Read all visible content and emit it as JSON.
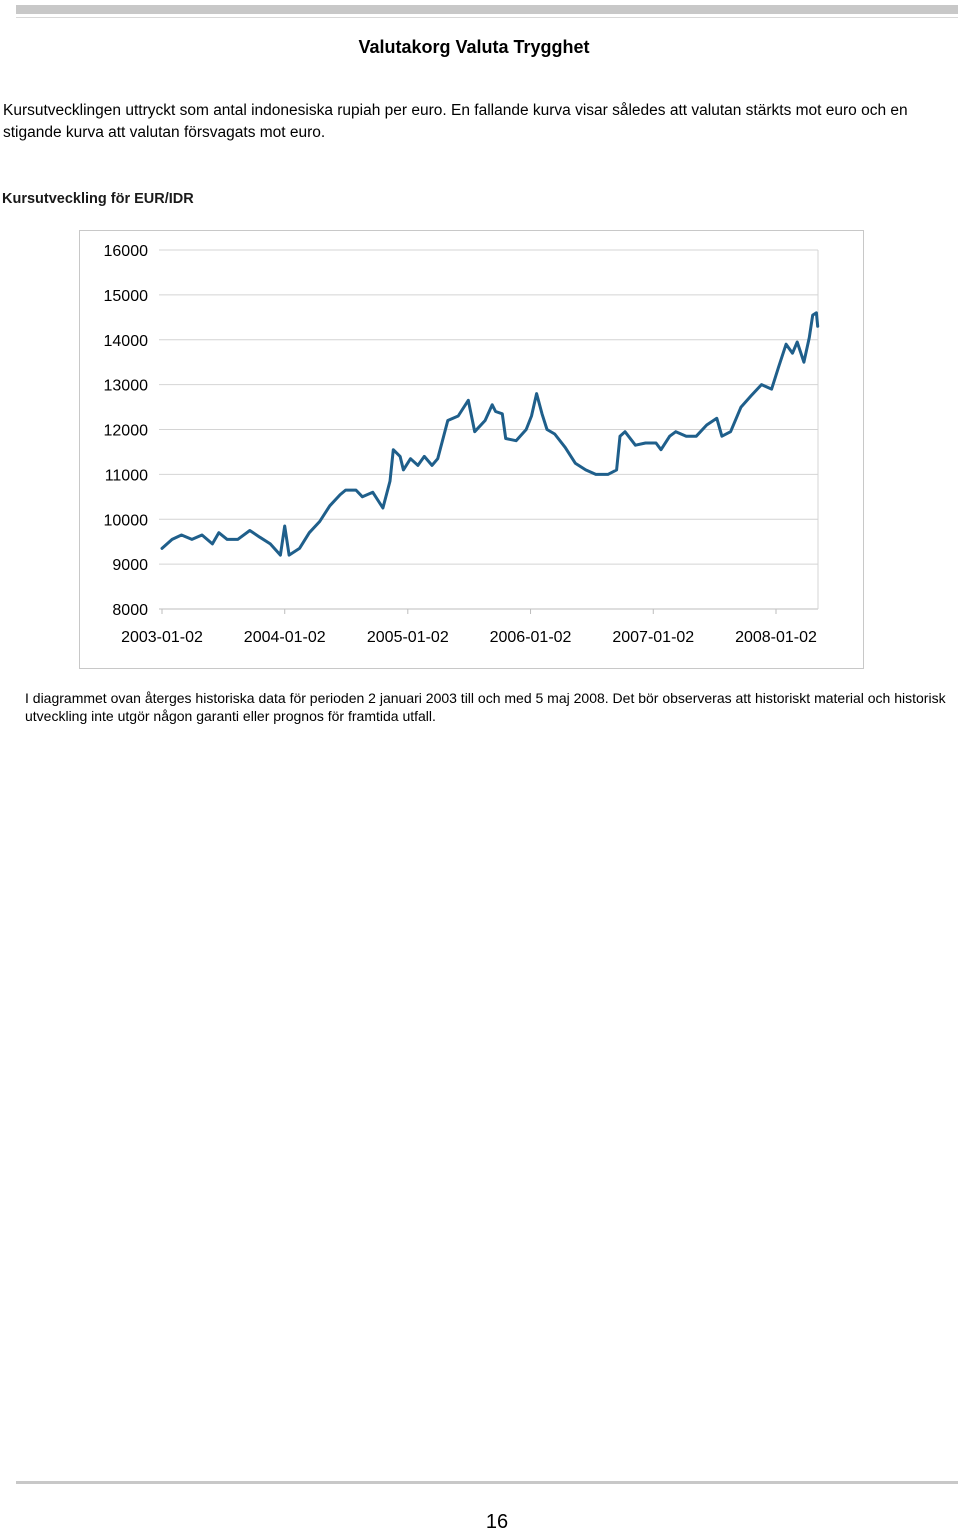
{
  "header": {
    "title": "Valutakorg Valuta Trygghet"
  },
  "intro_text": "Kursutvecklingen uttryckt som antal indonesiska rupiah per euro. En fallande kurva visar således att valutan stärkts mot euro och en stigande kurva att valutan försvagats mot euro.",
  "chart_heading": "Kursutveckling för EUR/IDR",
  "chart_data": {
    "type": "line",
    "title": "Kursutveckling för EUR/IDR",
    "xlabel": "",
    "ylabel": "",
    "ylim": [
      8000,
      16000
    ],
    "yticks": [
      "16000",
      "15000",
      "14000",
      "13000",
      "12000",
      "11000",
      "10000",
      "9000",
      "8000"
    ],
    "xticks": [
      "2003-01-02",
      "2004-01-02",
      "2005-01-02",
      "2006-01-02",
      "2007-01-02",
      "2008-01-02"
    ],
    "xrange": [
      "2003-01-02",
      "2008-05-05"
    ],
    "grid": "horizontal",
    "series": [
      {
        "color": "#1f5f8b",
        "points": [
          [
            "2003-01-02",
            9350
          ],
          [
            "2003-02-01",
            9550
          ],
          [
            "2003-03-01",
            9650
          ],
          [
            "2003-04-01",
            9550
          ],
          [
            "2003-05-01",
            9650
          ],
          [
            "2003-06-01",
            9450
          ],
          [
            "2003-06-20",
            9700
          ],
          [
            "2003-07-15",
            9550
          ],
          [
            "2003-08-15",
            9550
          ],
          [
            "2003-09-20",
            9750
          ],
          [
            "2003-10-20",
            9600
          ],
          [
            "2003-11-20",
            9450
          ],
          [
            "2003-12-20",
            9200
          ],
          [
            "2004-01-02",
            9850
          ],
          [
            "2004-01-15",
            9200
          ],
          [
            "2004-02-15",
            9350
          ],
          [
            "2004-03-15",
            9700
          ],
          [
            "2004-04-15",
            9950
          ],
          [
            "2004-05-15",
            10300
          ],
          [
            "2004-06-15",
            10550
          ],
          [
            "2004-07-01",
            10650
          ],
          [
            "2004-08-01",
            10650
          ],
          [
            "2004-08-20",
            10500
          ],
          [
            "2004-09-20",
            10600
          ],
          [
            "2004-10-20",
            10250
          ],
          [
            "2004-11-10",
            10850
          ],
          [
            "2004-11-20",
            11550
          ],
          [
            "2004-12-10",
            11400
          ],
          [
            "2004-12-20",
            11100
          ],
          [
            "2005-01-10",
            11350
          ],
          [
            "2005-02-01",
            11200
          ],
          [
            "2005-02-20",
            11400
          ],
          [
            "2005-03-15",
            11200
          ],
          [
            "2005-04-01",
            11350
          ],
          [
            "2005-05-01",
            12200
          ],
          [
            "2005-06-01",
            12300
          ],
          [
            "2005-07-01",
            12650
          ],
          [
            "2005-07-20",
            11950
          ],
          [
            "2005-08-20",
            12200
          ],
          [
            "2005-09-10",
            12550
          ],
          [
            "2005-09-20",
            12400
          ],
          [
            "2005-10-10",
            12350
          ],
          [
            "2005-10-20",
            11800
          ],
          [
            "2005-11-20",
            11750
          ],
          [
            "2005-12-20",
            12000
          ],
          [
            "2006-01-05",
            12300
          ],
          [
            "2006-01-20",
            12800
          ],
          [
            "2006-02-05",
            12350
          ],
          [
            "2006-02-20",
            12000
          ],
          [
            "2006-03-15",
            11900
          ],
          [
            "2006-04-15",
            11600
          ],
          [
            "2006-05-15",
            11250
          ],
          [
            "2006-06-15",
            11100
          ],
          [
            "2006-07-15",
            11000
          ],
          [
            "2006-08-20",
            11000
          ],
          [
            "2006-09-15",
            11100
          ],
          [
            "2006-09-25",
            11850
          ],
          [
            "2006-10-10",
            11950
          ],
          [
            "2006-11-10",
            11650
          ],
          [
            "2006-12-10",
            11700
          ],
          [
            "2007-01-10",
            11700
          ],
          [
            "2007-01-25",
            11550
          ],
          [
            "2007-02-20",
            11850
          ],
          [
            "2007-03-10",
            11950
          ],
          [
            "2007-04-10",
            11850
          ],
          [
            "2007-05-10",
            11850
          ],
          [
            "2007-06-10",
            12100
          ],
          [
            "2007-07-10",
            12250
          ],
          [
            "2007-07-25",
            11850
          ],
          [
            "2007-08-20",
            11950
          ],
          [
            "2007-09-20",
            12500
          ],
          [
            "2007-10-20",
            12750
          ],
          [
            "2007-11-20",
            13000
          ],
          [
            "2007-12-20",
            12900
          ],
          [
            "2008-01-10",
            13400
          ],
          [
            "2008-02-01",
            13900
          ],
          [
            "2008-02-20",
            13700
          ],
          [
            "2008-03-05",
            13950
          ],
          [
            "2008-03-25",
            13500
          ],
          [
            "2008-04-10",
            14050
          ],
          [
            "2008-04-20",
            14550
          ],
          [
            "2008-05-01",
            14600
          ],
          [
            "2008-05-05",
            14300
          ]
        ]
      }
    ]
  },
  "caption": "I diagrammet ovan återges historiska data för perioden 2 januari 2003 till och med 5 maj 2008. Det bör observeras att historiskt material och historisk utveckling inte utgör någon garanti eller prognos för framtida utfall.",
  "footer": {
    "page_number": "16"
  }
}
